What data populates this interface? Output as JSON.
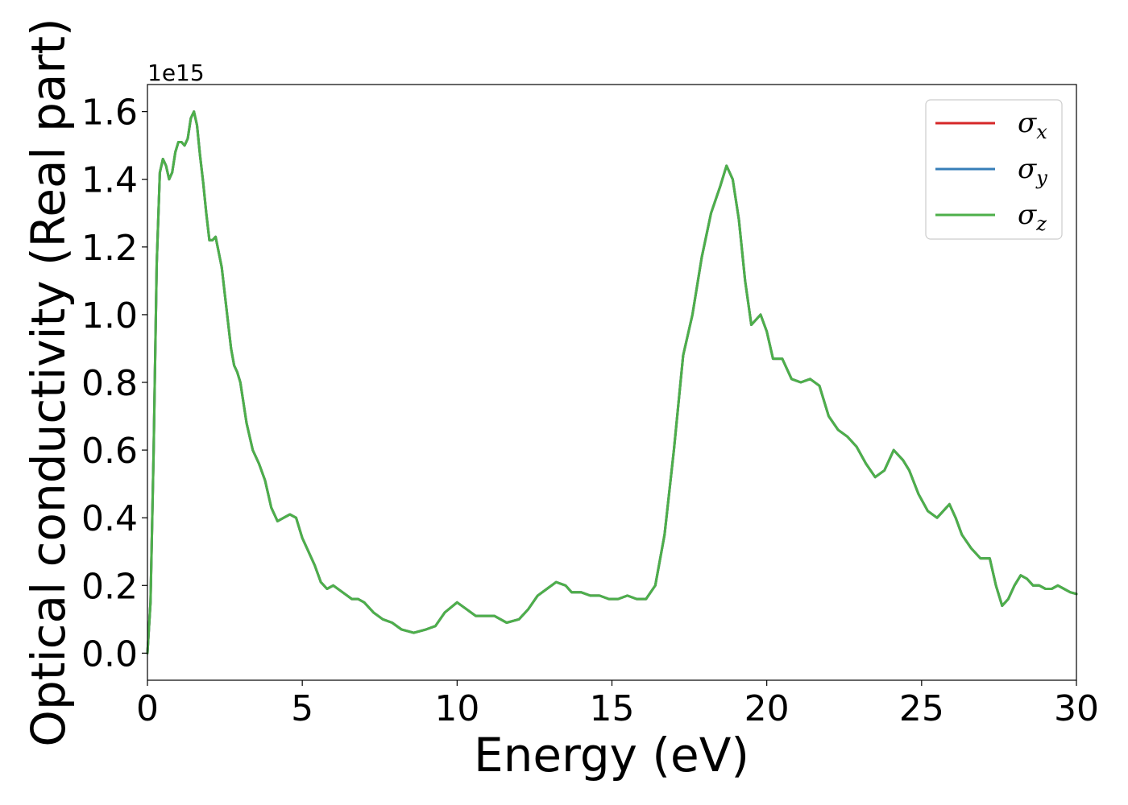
{
  "chart_data": {
    "type": "line",
    "xlabel": "Energy (eV)",
    "ylabel": "Optical conductivity (Real part)",
    "offset_text": "1e15",
    "y_multiplier": 1000000000000000.0,
    "xlim": [
      0,
      30
    ],
    "ylim": [
      -0.08,
      1.68
    ],
    "x_ticks": [
      0,
      5,
      10,
      15,
      20,
      25,
      30
    ],
    "x_tick_labels": [
      "0",
      "5",
      "10",
      "15",
      "20",
      "25",
      "30"
    ],
    "y_ticks": [
      0.0,
      0.2,
      0.4,
      0.6,
      0.8,
      1.0,
      1.2,
      1.4,
      1.6
    ],
    "y_tick_labels": [
      "0.0",
      "0.2",
      "0.4",
      "0.6",
      "0.8",
      "1.0",
      "1.2",
      "1.4",
      "1.6"
    ],
    "grid": false,
    "legend_position": "top-right",
    "x": [
      0,
      0.1,
      0.2,
      0.3,
      0.4,
      0.5,
      0.6,
      0.7,
      0.8,
      0.9,
      1.0,
      1.1,
      1.2,
      1.3,
      1.4,
      1.5,
      1.6,
      1.7,
      1.8,
      1.9,
      2.0,
      2.1,
      2.2,
      2.4,
      2.6,
      2.7,
      2.8,
      2.9,
      3.0,
      3.2,
      3.4,
      3.6,
      3.8,
      4.0,
      4.2,
      4.4,
      4.6,
      4.8,
      5.0,
      5.2,
      5.4,
      5.6,
      5.8,
      6.0,
      6.3,
      6.6,
      6.8,
      7.0,
      7.3,
      7.6,
      7.9,
      8.2,
      8.6,
      9.0,
      9.3,
      9.6,
      10.0,
      10.3,
      10.6,
      10.9,
      11.2,
      11.6,
      12.0,
      12.3,
      12.6,
      12.9,
      13.2,
      13.5,
      13.7,
      14.0,
      14.3,
      14.6,
      14.9,
      15.2,
      15.5,
      15.8,
      16.1,
      16.4,
      16.7,
      17.0,
      17.3,
      17.6,
      17.9,
      18.2,
      18.5,
      18.7,
      18.9,
      19.1,
      19.3,
      19.5,
      19.8,
      20.0,
      20.2,
      20.5,
      20.8,
      21.1,
      21.4,
      21.7,
      22.0,
      22.3,
      22.6,
      22.9,
      23.2,
      23.5,
      23.8,
      24.1,
      24.4,
      24.6,
      24.9,
      25.2,
      25.5,
      25.7,
      25.9,
      26.1,
      26.3,
      26.6,
      26.9,
      27.2,
      27.4,
      27.6,
      27.8,
      28.0,
      28.2,
      28.4,
      28.6,
      28.8,
      29.0,
      29.2,
      29.4,
      29.6,
      29.8,
      30.0
    ],
    "series": [
      {
        "name": "σx",
        "color": "#d62728",
        "values": [
          0.0,
          0.15,
          0.6,
          1.15,
          1.42,
          1.46,
          1.44,
          1.4,
          1.42,
          1.48,
          1.51,
          1.51,
          1.5,
          1.52,
          1.58,
          1.6,
          1.56,
          1.47,
          1.39,
          1.3,
          1.22,
          1.22,
          1.23,
          1.14,
          0.98,
          0.9,
          0.85,
          0.83,
          0.8,
          0.68,
          0.6,
          0.56,
          0.51,
          0.43,
          0.39,
          0.4,
          0.41,
          0.4,
          0.34,
          0.3,
          0.26,
          0.21,
          0.19,
          0.2,
          0.18,
          0.16,
          0.16,
          0.15,
          0.12,
          0.1,
          0.09,
          0.07,
          0.06,
          0.07,
          0.08,
          0.12,
          0.15,
          0.13,
          0.11,
          0.11,
          0.11,
          0.09,
          0.1,
          0.13,
          0.17,
          0.19,
          0.21,
          0.2,
          0.18,
          0.18,
          0.17,
          0.17,
          0.16,
          0.16,
          0.17,
          0.16,
          0.16,
          0.2,
          0.35,
          0.6,
          0.88,
          1.0,
          1.17,
          1.3,
          1.38,
          1.44,
          1.4,
          1.28,
          1.1,
          0.97,
          1.0,
          0.95,
          0.87,
          0.87,
          0.81,
          0.8,
          0.81,
          0.79,
          0.7,
          0.66,
          0.64,
          0.61,
          0.56,
          0.52,
          0.54,
          0.6,
          0.57,
          0.54,
          0.47,
          0.42,
          0.4,
          0.42,
          0.44,
          0.4,
          0.35,
          0.31,
          0.28,
          0.28,
          0.2,
          0.14,
          0.16,
          0.2,
          0.23,
          0.22,
          0.2,
          0.2,
          0.19,
          0.19,
          0.2,
          0.19,
          0.18,
          0.175
        ]
      },
      {
        "name": "σy",
        "color": "#377eb8",
        "values": [
          0.0,
          0.15,
          0.6,
          1.15,
          1.42,
          1.46,
          1.44,
          1.4,
          1.42,
          1.48,
          1.51,
          1.51,
          1.5,
          1.52,
          1.58,
          1.6,
          1.56,
          1.47,
          1.39,
          1.3,
          1.22,
          1.22,
          1.23,
          1.14,
          0.98,
          0.9,
          0.85,
          0.83,
          0.8,
          0.68,
          0.6,
          0.56,
          0.51,
          0.43,
          0.39,
          0.4,
          0.41,
          0.4,
          0.34,
          0.3,
          0.26,
          0.21,
          0.19,
          0.2,
          0.18,
          0.16,
          0.16,
          0.15,
          0.12,
          0.1,
          0.09,
          0.07,
          0.06,
          0.07,
          0.08,
          0.12,
          0.15,
          0.13,
          0.11,
          0.11,
          0.11,
          0.09,
          0.1,
          0.13,
          0.17,
          0.19,
          0.21,
          0.2,
          0.18,
          0.18,
          0.17,
          0.17,
          0.16,
          0.16,
          0.17,
          0.16,
          0.16,
          0.2,
          0.35,
          0.6,
          0.88,
          1.0,
          1.17,
          1.3,
          1.38,
          1.44,
          1.4,
          1.28,
          1.1,
          0.97,
          1.0,
          0.95,
          0.87,
          0.87,
          0.81,
          0.8,
          0.81,
          0.79,
          0.7,
          0.66,
          0.64,
          0.61,
          0.56,
          0.52,
          0.54,
          0.6,
          0.57,
          0.54,
          0.47,
          0.42,
          0.4,
          0.42,
          0.44,
          0.4,
          0.35,
          0.31,
          0.28,
          0.28,
          0.2,
          0.14,
          0.16,
          0.2,
          0.23,
          0.22,
          0.2,
          0.2,
          0.19,
          0.19,
          0.2,
          0.19,
          0.18,
          0.175
        ]
      },
      {
        "name": "σz",
        "color": "#4daf4a",
        "values": [
          0.0,
          0.15,
          0.6,
          1.15,
          1.42,
          1.46,
          1.44,
          1.4,
          1.42,
          1.48,
          1.51,
          1.51,
          1.5,
          1.52,
          1.58,
          1.6,
          1.56,
          1.47,
          1.39,
          1.3,
          1.22,
          1.22,
          1.23,
          1.14,
          0.98,
          0.9,
          0.85,
          0.83,
          0.8,
          0.68,
          0.6,
          0.56,
          0.51,
          0.43,
          0.39,
          0.4,
          0.41,
          0.4,
          0.34,
          0.3,
          0.26,
          0.21,
          0.19,
          0.2,
          0.18,
          0.16,
          0.16,
          0.15,
          0.12,
          0.1,
          0.09,
          0.07,
          0.06,
          0.07,
          0.08,
          0.12,
          0.15,
          0.13,
          0.11,
          0.11,
          0.11,
          0.09,
          0.1,
          0.13,
          0.17,
          0.19,
          0.21,
          0.2,
          0.18,
          0.18,
          0.17,
          0.17,
          0.16,
          0.16,
          0.17,
          0.16,
          0.16,
          0.2,
          0.35,
          0.6,
          0.88,
          1.0,
          1.17,
          1.3,
          1.38,
          1.44,
          1.4,
          1.28,
          1.1,
          0.97,
          1.0,
          0.95,
          0.87,
          0.87,
          0.81,
          0.8,
          0.81,
          0.79,
          0.7,
          0.66,
          0.64,
          0.61,
          0.56,
          0.52,
          0.54,
          0.6,
          0.57,
          0.54,
          0.47,
          0.42,
          0.4,
          0.42,
          0.44,
          0.4,
          0.35,
          0.31,
          0.28,
          0.28,
          0.2,
          0.14,
          0.16,
          0.2,
          0.23,
          0.22,
          0.2,
          0.2,
          0.19,
          0.19,
          0.2,
          0.19,
          0.18,
          0.175
        ]
      }
    ]
  }
}
